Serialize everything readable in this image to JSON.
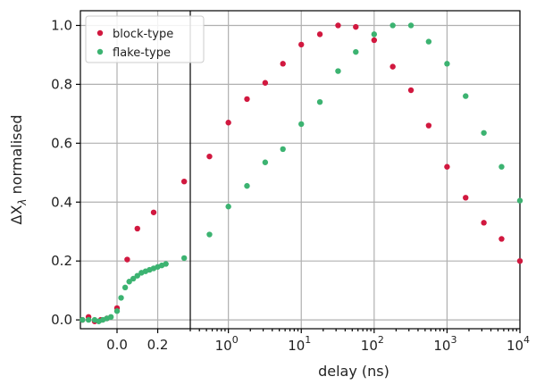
{
  "chart_data": {
    "type": "scatter",
    "xlabel": "delay (ns)",
    "ylabel_prefix": "ΔX",
    "ylabel_sub": "λ",
    "ylabel_suffix": " normalised",
    "ylim": [
      -0.03,
      1.05
    ],
    "yticks": [
      0.0,
      0.2,
      0.4,
      0.6,
      0.8,
      1.0
    ],
    "ytick_labels": [
      "0.0",
      "0.2",
      "0.4",
      "0.6",
      "0.8",
      "1.0"
    ],
    "grid": true,
    "legend_position": "top-left",
    "x_axis": {
      "broken": true,
      "left_panel": {
        "scale": "linear",
        "range": [
          -0.18,
          0.36
        ],
        "ticks": [
          0.0,
          0.2
        ],
        "tick_labels": [
          "0.0",
          "0.2"
        ]
      },
      "right_panel": {
        "scale": "log",
        "range": [
          0.3,
          10000
        ],
        "ticks": [
          1,
          10,
          100,
          1000,
          10000
        ],
        "tick_labels_base": [
          "10",
          "10",
          "10",
          "10",
          "10"
        ],
        "tick_labels_exp": [
          "0",
          "1",
          "2",
          "3",
          "4"
        ]
      }
    },
    "series": [
      {
        "name": "block-type",
        "color": "#d1183f",
        "left_points": [
          [
            -0.17,
            0.0
          ],
          [
            -0.14,
            0.01
          ],
          [
            -0.11,
            -0.005
          ],
          [
            -0.08,
            0.0
          ],
          [
            -0.05,
            0.005
          ],
          [
            0.0,
            0.04
          ],
          [
            0.05,
            0.205
          ],
          [
            0.1,
            0.31
          ],
          [
            0.18,
            0.365
          ],
          [
            0.33,
            0.47
          ]
        ],
        "right_points": [
          [
            0.55,
            0.555
          ],
          [
            1.0,
            0.67
          ],
          [
            1.8,
            0.75
          ],
          [
            3.2,
            0.805
          ],
          [
            5.6,
            0.87
          ],
          [
            10,
            0.935
          ],
          [
            18,
            0.97
          ],
          [
            32,
            1.0
          ],
          [
            56,
            0.995
          ],
          [
            100,
            0.95
          ],
          [
            180,
            0.86
          ],
          [
            320,
            0.78
          ],
          [
            560,
            0.66
          ],
          [
            1000,
            0.52
          ],
          [
            1800,
            0.415
          ],
          [
            3200,
            0.33
          ],
          [
            5600,
            0.275
          ],
          [
            10000,
            0.2
          ]
        ]
      },
      {
        "name": "flake-type",
        "color": "#3cb371",
        "left_points": [
          [
            -0.17,
            0.0
          ],
          [
            -0.14,
            0.0
          ],
          [
            -0.11,
            0.0
          ],
          [
            -0.09,
            -0.005
          ],
          [
            -0.07,
            0.0
          ],
          [
            -0.05,
            0.005
          ],
          [
            -0.03,
            0.01
          ],
          [
            0.0,
            0.03
          ],
          [
            0.02,
            0.075
          ],
          [
            0.04,
            0.11
          ],
          [
            0.06,
            0.13
          ],
          [
            0.08,
            0.14
          ],
          [
            0.1,
            0.15
          ],
          [
            0.12,
            0.16
          ],
          [
            0.14,
            0.165
          ],
          [
            0.16,
            0.17
          ],
          [
            0.18,
            0.175
          ],
          [
            0.2,
            0.18
          ],
          [
            0.22,
            0.185
          ],
          [
            0.24,
            0.19
          ],
          [
            0.33,
            0.21
          ]
        ],
        "right_points": [
          [
            0.55,
            0.29
          ],
          [
            1.0,
            0.385
          ],
          [
            1.8,
            0.455
          ],
          [
            3.2,
            0.535
          ],
          [
            5.6,
            0.58
          ],
          [
            10,
            0.665
          ],
          [
            18,
            0.74
          ],
          [
            32,
            0.845
          ],
          [
            56,
            0.91
          ],
          [
            100,
            0.97
          ],
          [
            180,
            1.0
          ],
          [
            320,
            1.0
          ],
          [
            560,
            0.945
          ],
          [
            1000,
            0.87
          ],
          [
            1800,
            0.76
          ],
          [
            3200,
            0.635
          ],
          [
            5600,
            0.52
          ],
          [
            10000,
            0.405
          ]
        ]
      }
    ]
  }
}
